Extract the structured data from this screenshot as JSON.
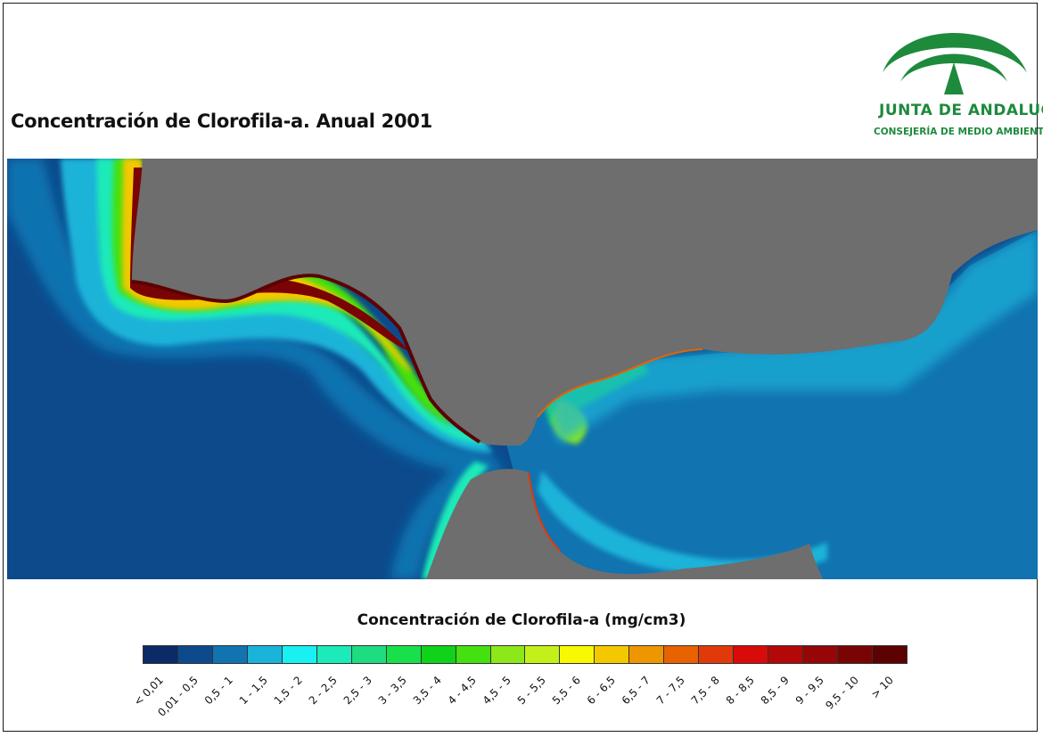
{
  "title": "Concentración de Clorofila-a. Anual 2001",
  "logo": {
    "name": "JUNTA DE ANDALUCIA",
    "subtitle": "CONSEJERÍA DE MEDIO AMBIENTE",
    "color": "#1e8a3c"
  },
  "map": {
    "land_color": "#6e6e6e",
    "background_class": "0,01 - 0,5"
  },
  "legend": {
    "title": "Concentración de Clorofila-a (mg/cm3)",
    "classes": [
      {
        "label": "< 0,01",
        "color": "#0b2a66"
      },
      {
        "label": "0,01 - 0,5",
        "color": "#0c4a8c"
      },
      {
        "label": "0,5 - 1",
        "color": "#1173b0"
      },
      {
        "label": "1 - 1,5",
        "color": "#1ab3d9"
      },
      {
        "label": "1,5 - 2",
        "color": "#19f0f2"
      },
      {
        "label": "2 - 2,5",
        "color": "#1ceab8"
      },
      {
        "label": "2,5 - 3",
        "color": "#1edc80"
      },
      {
        "label": "3 - 3,5",
        "color": "#18e04a"
      },
      {
        "label": "3,5 - 4",
        "color": "#10d218"
      },
      {
        "label": "4 - 4,5",
        "color": "#44e010"
      },
      {
        "label": "4,5 - 5",
        "color": "#8ce818"
      },
      {
        "label": "5 - 5,5",
        "color": "#c4f01a"
      },
      {
        "label": "5,5 - 6",
        "color": "#f8f800"
      },
      {
        "label": "6 - 6,5",
        "color": "#f4c800"
      },
      {
        "label": "6,5 - 7",
        "color": "#ee9600"
      },
      {
        "label": "7 - 7,5",
        "color": "#e86200"
      },
      {
        "label": "7,5 - 8",
        "color": "#e03a0a"
      },
      {
        "label": "8 - 8,5",
        "color": "#d80a0a"
      },
      {
        "label": "8,5 - 9",
        "color": "#b40808"
      },
      {
        "label": "9 - 9,5",
        "color": "#960606"
      },
      {
        "label": "9,5 - 10",
        "color": "#7a0404"
      },
      {
        "label": "> 10",
        "color": "#5c0202"
      }
    ]
  }
}
